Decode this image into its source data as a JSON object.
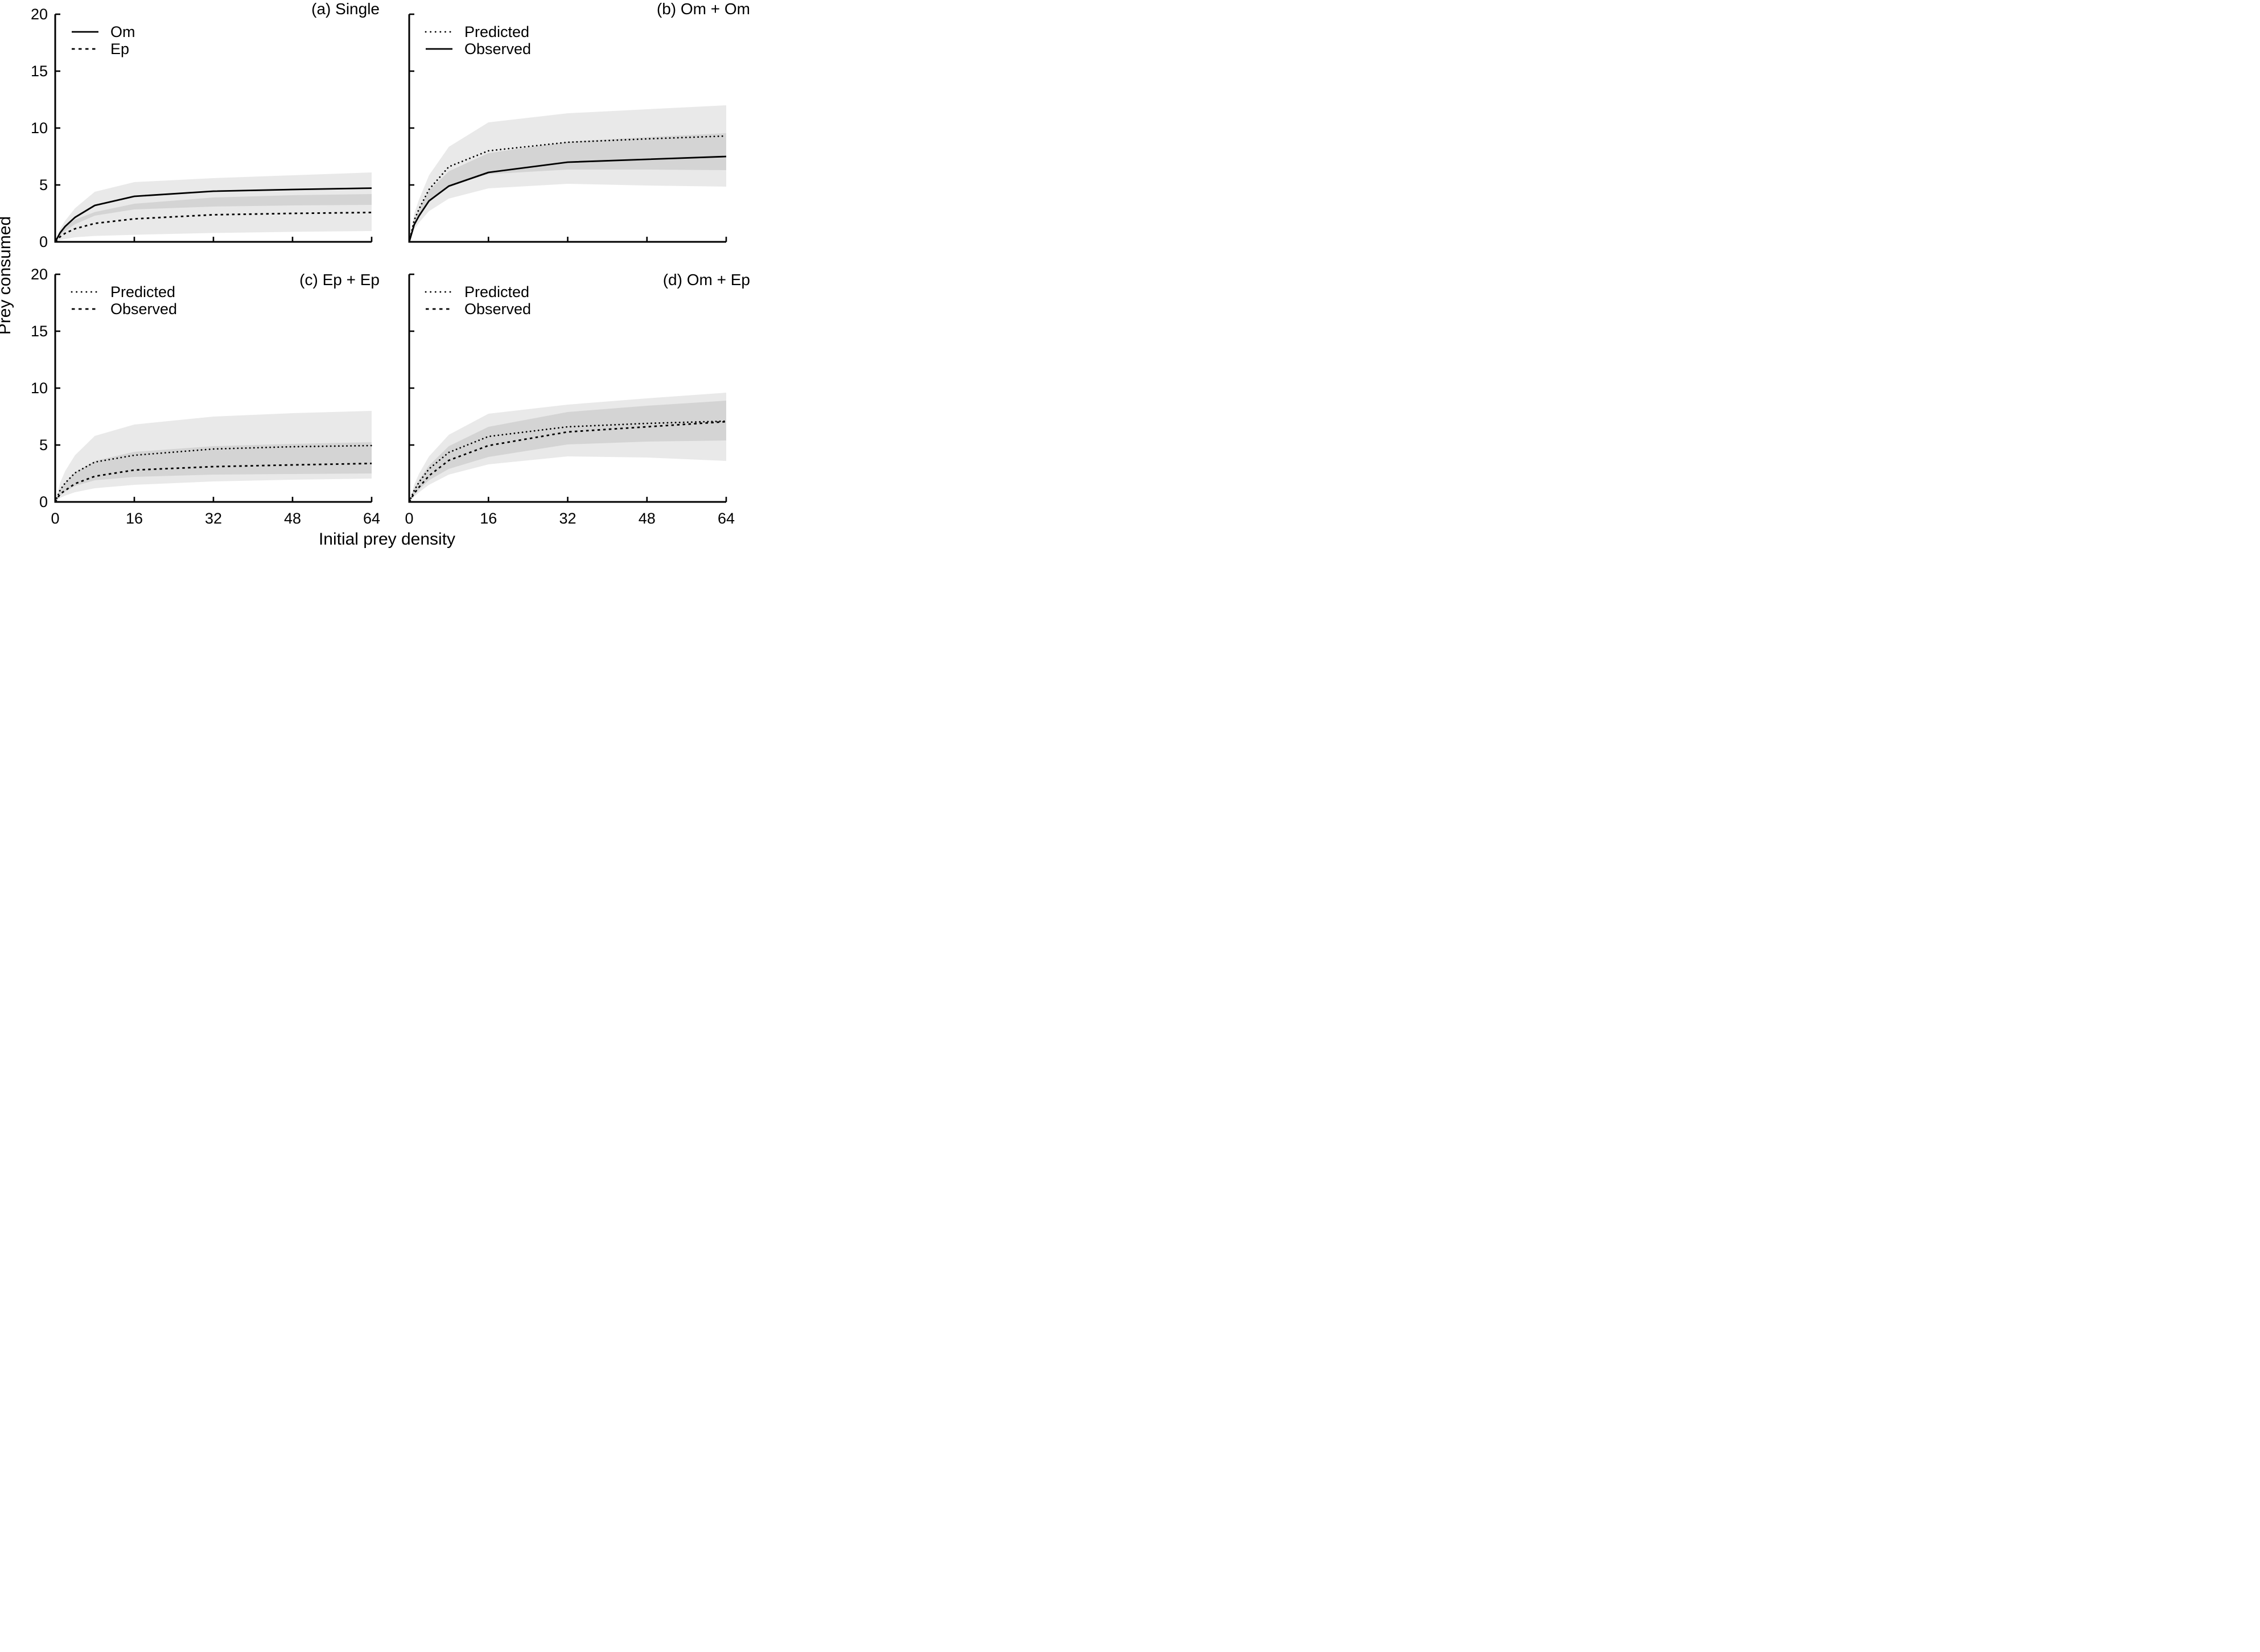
{
  "figure": {
    "y_axis_label": "Prey consumed",
    "x_axis_label": "Initial prey density"
  },
  "colors": {
    "line": "#000000",
    "band_fill": "rgba(0,0,0,0.085)",
    "background": "#ffffff"
  },
  "chart_data": [
    {
      "type": "line",
      "panel": "a",
      "title": "(a) Single",
      "xlabel": "Initial prey density",
      "ylabel": "Prey consumed",
      "xlim": [
        0,
        64
      ],
      "ylim": [
        0,
        20
      ],
      "xticks": [
        0,
        16,
        32,
        48,
        64
      ],
      "yticks": [
        0,
        5,
        10,
        15,
        20
      ],
      "grid": false,
      "legend_position": "top-left",
      "x": [
        0,
        1,
        2,
        4,
        8,
        16,
        32,
        48,
        64
      ],
      "series": [
        {
          "name": "Om",
          "line_style": "solid",
          "values": [
            0,
            0.8,
            1.35,
            2.15,
            3.2,
            4.0,
            4.45,
            4.6,
            4.72
          ],
          "band_lo": [
            0,
            0.55,
            0.95,
            1.55,
            2.3,
            2.85,
            3.1,
            3.2,
            3.25
          ],
          "band_hi": [
            0,
            1.15,
            1.85,
            2.95,
            4.4,
            5.25,
            5.6,
            5.85,
            6.1
          ]
        },
        {
          "name": "Ep",
          "line_style": "dash",
          "values": [
            0,
            0.45,
            0.75,
            1.15,
            1.62,
            2.02,
            2.38,
            2.5,
            2.58
          ],
          "band_lo": [
            0,
            0.15,
            0.25,
            0.4,
            0.52,
            0.62,
            0.78,
            0.88,
            0.95
          ],
          "band_hi": [
            0,
            0.8,
            1.3,
            1.95,
            2.62,
            3.35,
            3.9,
            4.1,
            4.2
          ]
        }
      ]
    },
    {
      "type": "line",
      "panel": "b",
      "title": "(b) Om + Om",
      "xlabel": "Initial prey density",
      "ylabel": "Prey consumed",
      "xlim": [
        0,
        64
      ],
      "ylim": [
        0,
        20
      ],
      "xticks": [
        0,
        16,
        32,
        48,
        64
      ],
      "yticks": [
        0,
        5,
        10,
        15,
        20
      ],
      "grid": false,
      "legend_position": "top-left",
      "x": [
        0,
        1,
        2,
        4,
        8,
        16,
        32,
        48,
        64
      ],
      "series": [
        {
          "name": "Predicted",
          "line_style": "dot",
          "values": [
            0,
            1.9,
            2.9,
            4.6,
            6.6,
            8.0,
            8.75,
            9.05,
            9.3
          ],
          "band_lo": [
            0,
            1.4,
            2.15,
            3.45,
            4.95,
            5.95,
            6.35,
            6.35,
            6.3
          ],
          "band_hi": [
            0,
            2.45,
            3.75,
            5.85,
            8.35,
            10.5,
            11.3,
            11.65,
            12.0
          ]
        },
        {
          "name": "Observed",
          "line_style": "solid",
          "values": [
            0,
            1.5,
            2.3,
            3.6,
            4.9,
            6.1,
            7.0,
            7.25,
            7.5
          ],
          "band_lo": [
            0,
            1.1,
            1.7,
            2.7,
            3.8,
            4.7,
            5.1,
            4.95,
            4.85
          ],
          "band_hi": [
            0,
            1.9,
            2.9,
            4.5,
            6.2,
            7.8,
            8.8,
            9.2,
            9.55
          ]
        }
      ]
    },
    {
      "type": "line",
      "panel": "c",
      "title": "(c) Ep + Ep",
      "xlabel": "Initial prey density",
      "ylabel": "Prey consumed",
      "xlim": [
        0,
        64
      ],
      "ylim": [
        0,
        20
      ],
      "xticks": [
        0,
        16,
        32,
        48,
        64
      ],
      "yticks": [
        0,
        5,
        10,
        15,
        20
      ],
      "grid": false,
      "legend_position": "top-left",
      "x": [
        0,
        1,
        2,
        4,
        8,
        16,
        32,
        48,
        64
      ],
      "series": [
        {
          "name": "Predicted",
          "line_style": "dot",
          "values": [
            0,
            1.05,
            1.65,
            2.55,
            3.5,
            4.1,
            4.65,
            4.85,
            4.95
          ],
          "band_lo": [
            0,
            0.55,
            0.9,
            1.4,
            1.9,
            2.2,
            2.4,
            2.45,
            2.5
          ],
          "band_hi": [
            0,
            1.7,
            2.7,
            4.1,
            5.8,
            6.8,
            7.5,
            7.8,
            8.0
          ]
        },
        {
          "name": "Observed",
          "line_style": "dash",
          "values": [
            0,
            0.7,
            1.0,
            1.6,
            2.25,
            2.8,
            3.1,
            3.25,
            3.38
          ],
          "band_lo": [
            0,
            0.35,
            0.55,
            0.85,
            1.2,
            1.5,
            1.8,
            1.95,
            2.05
          ],
          "band_hi": [
            0,
            1.1,
            1.7,
            2.6,
            3.6,
            4.4,
            4.9,
            5.1,
            5.25
          ]
        }
      ]
    },
    {
      "type": "line",
      "panel": "d",
      "title": "(d) Om + Ep",
      "xlabel": "Initial prey density",
      "ylabel": "Prey consumed",
      "xlim": [
        0,
        64
      ],
      "ylim": [
        0,
        20
      ],
      "xticks": [
        0,
        16,
        32,
        48,
        64
      ],
      "yticks": [
        0,
        5,
        10,
        15,
        20
      ],
      "grid": false,
      "legend_position": "top-left",
      "x": [
        0,
        1,
        2,
        4,
        8,
        16,
        32,
        48,
        64
      ],
      "series": [
        {
          "name": "Predicted",
          "line_style": "dot",
          "values": [
            0,
            1.0,
            1.75,
            2.9,
            4.35,
            5.75,
            6.6,
            6.9,
            7.1
          ],
          "band_lo": [
            0,
            0.6,
            1.1,
            1.9,
            2.9,
            3.95,
            5.05,
            5.3,
            5.4
          ],
          "band_hi": [
            0,
            1.5,
            2.5,
            4.0,
            5.9,
            7.75,
            8.55,
            9.1,
            9.6
          ]
        },
        {
          "name": "Observed",
          "line_style": "dash",
          "values": [
            0,
            0.75,
            1.3,
            2.3,
            3.65,
            4.95,
            6.15,
            6.6,
            7.05
          ],
          "band_lo": [
            0,
            0.45,
            0.85,
            1.5,
            2.4,
            3.3,
            4.0,
            3.9,
            3.6
          ],
          "band_hi": [
            0,
            1.15,
            1.95,
            3.2,
            4.9,
            6.6,
            7.9,
            8.45,
            8.9
          ]
        }
      ]
    }
  ]
}
